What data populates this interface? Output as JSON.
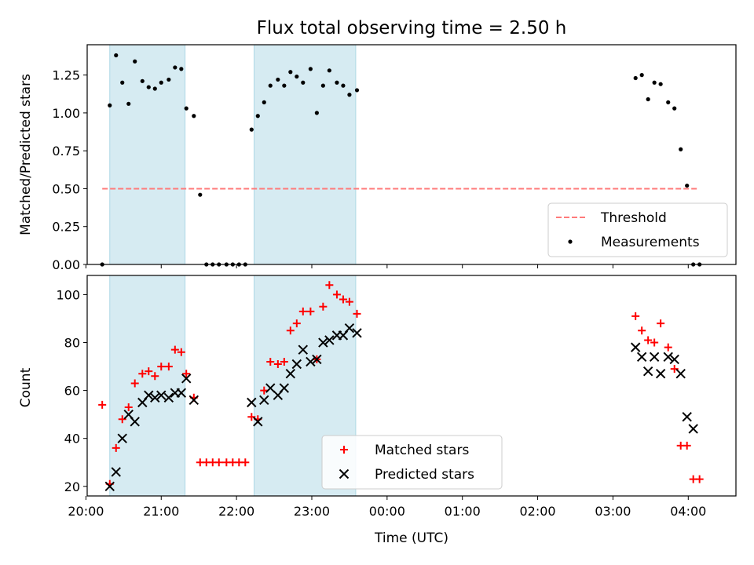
{
  "chart_data": [
    {
      "type": "scatter",
      "title": "Flux total observing time = 2.50 h",
      "xlabel": "",
      "ylabel": "Matched/Predicted stars",
      "ylim": [
        0,
        1.45
      ],
      "yticks": [
        0.0,
        0.25,
        0.5,
        0.75,
        1.0,
        1.25
      ],
      "ytick_labels": [
        "0.00",
        "0.25",
        "0.50",
        "0.75",
        "1.00",
        "1.25"
      ],
      "xlim": [
        "20:01",
        "04:38"
      ],
      "xticks": [
        "20:00",
        "21:00",
        "22:00",
        "23:00",
        "00:00",
        "01:00",
        "02:00",
        "03:00",
        "04:00"
      ],
      "shaded_intervals": [
        [
          "20:19",
          "21:19"
        ],
        [
          "22:14",
          "23:35"
        ]
      ],
      "legend_position": "lower right",
      "threshold": {
        "name": "Threshold",
        "y": 0.5,
        "x_range": [
          "20:13",
          "04:07"
        ],
        "color": "#ff7b7b"
      },
      "series": [
        {
          "name": "Measurements",
          "color": "#000000",
          "marker": "dot",
          "x": [
            "20:13",
            "20:19",
            "20:24",
            "20:29",
            "20:34",
            "20:39",
            "20:45",
            "20:50",
            "20:55",
            "21:00",
            "21:06",
            "21:11",
            "21:16",
            "21:20",
            "21:26",
            "21:31",
            "21:36",
            "21:41",
            "21:46",
            "21:52",
            "21:57",
            "22:02",
            "22:07",
            "22:12",
            "22:17",
            "22:22",
            "22:27",
            "22:33",
            "22:38",
            "22:43",
            "22:48",
            "22:53",
            "22:59",
            "23:04",
            "23:09",
            "23:14",
            "23:20",
            "23:25",
            "23:30",
            "23:36",
            "03:18",
            "03:23",
            "03:28",
            "03:33",
            "03:38",
            "03:44",
            "03:49",
            "03:54",
            "03:59",
            "04:04",
            "04:09"
          ],
          "y": [
            0,
            1.05,
            1.38,
            1.2,
            1.06,
            1.34,
            1.21,
            1.17,
            1.16,
            1.2,
            1.22,
            1.3,
            1.29,
            1.03,
            0.98,
            0.46,
            0,
            0,
            0,
            0,
            0,
            0,
            0,
            0.89,
            0.98,
            1.07,
            1.18,
            1.22,
            1.18,
            1.27,
            1.24,
            1.2,
            1.29,
            1.0,
            1.18,
            1.28,
            1.2,
            1.18,
            1.12,
            1.15,
            1.23,
            1.25,
            1.09,
            1.2,
            1.19,
            1.07,
            1.03,
            0.76,
            0.52,
            0,
            0
          ]
        }
      ]
    },
    {
      "type": "scatter",
      "title": "",
      "xlabel": "Time (UTC)",
      "ylabel": "Count",
      "ylim": [
        16,
        108
      ],
      "yticks": [
        20,
        40,
        60,
        80,
        100
      ],
      "ytick_labels": [
        "20",
        "40",
        "60",
        "80",
        "100"
      ],
      "xlim": [
        "20:01",
        "04:38"
      ],
      "xticks": [
        "20:00",
        "21:00",
        "22:00",
        "23:00",
        "00:00",
        "01:00",
        "02:00",
        "03:00",
        "04:00"
      ],
      "xtick_labels": [
        "20:00",
        "21:00",
        "22:00",
        "23:00",
        "00:00",
        "01:00",
        "02:00",
        "03:00",
        "04:00"
      ],
      "shaded_intervals": [
        [
          "20:19",
          "21:19"
        ],
        [
          "22:14",
          "23:35"
        ]
      ],
      "legend_position": "lower center",
      "series": [
        {
          "name": "Matched stars",
          "color": "#ff0000",
          "marker": "plus",
          "x": [
            "20:13",
            "20:19",
            "20:24",
            "20:29",
            "20:34",
            "20:39",
            "20:45",
            "20:50",
            "20:55",
            "21:00",
            "21:06",
            "21:11",
            "21:16",
            "21:20",
            "21:26",
            "21:31",
            "21:36",
            "21:41",
            "21:46",
            "21:52",
            "21:57",
            "22:02",
            "22:07",
            "22:12",
            "22:17",
            "22:22",
            "22:27",
            "22:33",
            "22:38",
            "22:43",
            "22:48",
            "22:53",
            "22:59",
            "23:04",
            "23:09",
            "23:14",
            "23:20",
            "23:25",
            "23:30",
            "23:36",
            "03:18",
            "03:23",
            "03:28",
            "03:33",
            "03:38",
            "03:44",
            "03:49",
            "03:54",
            "03:59",
            "04:04",
            "04:09"
          ],
          "y": [
            54,
            21,
            36,
            48,
            53,
            63,
            67,
            68,
            66,
            70,
            70,
            77,
            76,
            67,
            57,
            30,
            30,
            30,
            30,
            30,
            30,
            30,
            30,
            49,
            48,
            60,
            72,
            71,
            72,
            85,
            88,
            93,
            93,
            73,
            95,
            104,
            100,
            98,
            97,
            92,
            91,
            85,
            81,
            80,
            88,
            78,
            69,
            37,
            37,
            23,
            23
          ]
        },
        {
          "name": "Predicted stars",
          "color": "#000000",
          "marker": "cross",
          "x": [
            "20:19",
            "20:24",
            "20:29",
            "20:34",
            "20:39",
            "20:45",
            "20:50",
            "20:55",
            "21:00",
            "21:06",
            "21:11",
            "21:16",
            "21:20",
            "21:26",
            "22:12",
            "22:17",
            "22:22",
            "22:27",
            "22:33",
            "22:38",
            "22:43",
            "22:48",
            "22:53",
            "22:59",
            "23:04",
            "23:09",
            "23:14",
            "23:20",
            "23:25",
            "23:30",
            "23:36",
            "03:18",
            "03:23",
            "03:28",
            "03:33",
            "03:38",
            "03:44",
            "03:49",
            "03:54",
            "03:59",
            "04:04"
          ],
          "y": [
            20,
            26,
            40,
            50,
            47,
            55,
            58,
            57,
            58,
            57,
            59,
            59,
            65,
            56,
            55,
            47,
            56,
            61,
            58,
            61,
            67,
            71,
            77,
            72,
            73,
            80,
            81,
            83,
            83,
            86,
            84,
            78,
            74,
            68,
            74,
            67,
            74,
            73,
            67,
            49,
            44
          ]
        }
      ]
    }
  ]
}
